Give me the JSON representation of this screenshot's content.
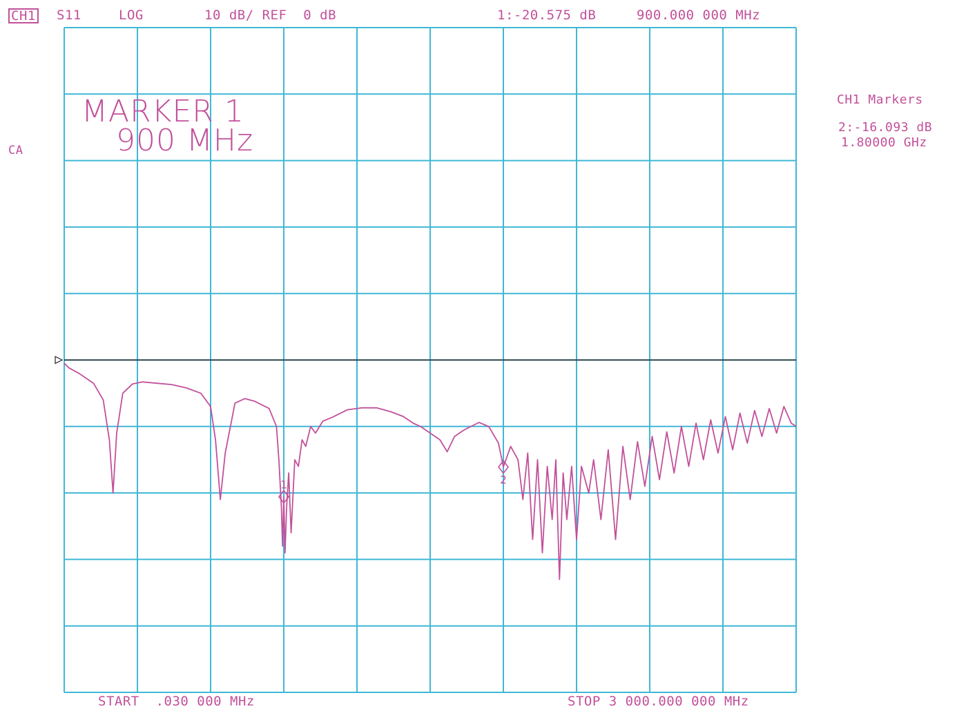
{
  "header": {
    "channel": "CH1",
    "parameter": "S11",
    "format": "LOG",
    "scale": "10 dB/ REF  0 dB",
    "marker_readout": "1:-20.575 dB",
    "marker_frequency": "900.000 000 MHz"
  },
  "side": {
    "cal_indicator": "CA",
    "markers_title": "CH1 Markers",
    "marker2_value": "2:-16.093 dB",
    "marker2_freq": "1.80000 GHz"
  },
  "annotation": {
    "line1": "MARKER 1",
    "line2": "900 MHz"
  },
  "footer": {
    "start": "START  .030 000 MHz",
    "stop": "STOP 3 000.000 000 MHz"
  },
  "colors": {
    "grid": "#3fb7d6",
    "trace": "#c2509a",
    "reference": "#222222"
  },
  "chart_data": {
    "type": "line",
    "x_unit": "MHz",
    "y_unit": "dB",
    "xlim": [
      0.03,
      3000
    ],
    "ylim": [
      -50,
      50
    ],
    "x_divisions": 10,
    "y_divisions": 10,
    "reference_level": 0,
    "grid": true,
    "markers": [
      {
        "label": "1",
        "x": 900,
        "y": -20.575
      },
      {
        "label": "2",
        "x": 1800,
        "y": -16.093
      }
    ],
    "series": [
      {
        "values": [
          [
            0.03,
            -0.5
          ],
          [
            20,
            -1.2
          ],
          [
            60,
            -2.0
          ],
          [
            120,
            -3.5
          ],
          [
            160,
            -6
          ],
          [
            185,
            -12
          ],
          [
            200,
            -20
          ],
          [
            215,
            -11
          ],
          [
            240,
            -5
          ],
          [
            280,
            -3.6
          ],
          [
            320,
            -3.3
          ],
          [
            380,
            -3.5
          ],
          [
            440,
            -3.7
          ],
          [
            500,
            -4.2
          ],
          [
            560,
            -5
          ],
          [
            600,
            -7
          ],
          [
            620,
            -12
          ],
          [
            640,
            -21
          ],
          [
            660,
            -14
          ],
          [
            700,
            -6.5
          ],
          [
            740,
            -5.8
          ],
          [
            780,
            -6.2
          ],
          [
            840,
            -7.3
          ],
          [
            870,
            -10
          ],
          [
            880,
            -15
          ],
          [
            890,
            -22
          ],
          [
            895,
            -28
          ],
          [
            900,
            -20.6
          ],
          [
            905,
            -29
          ],
          [
            912,
            -22
          ],
          [
            920,
            -17
          ],
          [
            930,
            -26
          ],
          [
            945,
            -15
          ],
          [
            960,
            -16
          ],
          [
            975,
            -12
          ],
          [
            990,
            -13
          ],
          [
            1010,
            -10
          ],
          [
            1030,
            -11
          ],
          [
            1060,
            -9.2
          ],
          [
            1100,
            -8.6
          ],
          [
            1160,
            -7.5
          ],
          [
            1220,
            -7.2
          ],
          [
            1280,
            -7.2
          ],
          [
            1340,
            -7.8
          ],
          [
            1390,
            -8.5
          ],
          [
            1430,
            -9.5
          ],
          [
            1460,
            -10
          ],
          [
            1500,
            -11
          ],
          [
            1540,
            -12
          ],
          [
            1570,
            -13.8
          ],
          [
            1600,
            -11.5
          ],
          [
            1640,
            -10.5
          ],
          [
            1700,
            -9.4
          ],
          [
            1740,
            -10
          ],
          [
            1780,
            -12.5
          ],
          [
            1800,
            -16.1
          ],
          [
            1830,
            -13
          ],
          [
            1860,
            -15
          ],
          [
            1880,
            -21
          ],
          [
            1900,
            -14
          ],
          [
            1920,
            -27
          ],
          [
            1940,
            -15
          ],
          [
            1960,
            -29
          ],
          [
            1980,
            -16
          ],
          [
            2000,
            -24
          ],
          [
            2015,
            -15
          ],
          [
            2030,
            -33
          ],
          [
            2045,
            -17
          ],
          [
            2060,
            -24
          ],
          [
            2080,
            -16
          ],
          [
            2100,
            -27
          ],
          [
            2120,
            -16
          ],
          [
            2150,
            -20
          ],
          [
            2170,
            -15
          ],
          [
            2200,
            -24
          ],
          [
            2230,
            -13.5
          ],
          [
            2260,
            -27
          ],
          [
            2290,
            -13
          ],
          [
            2320,
            -21
          ],
          [
            2350,
            -12.3
          ],
          [
            2380,
            -19
          ],
          [
            2410,
            -11.5
          ],
          [
            2440,
            -18
          ],
          [
            2470,
            -10.8
          ],
          [
            2500,
            -17
          ],
          [
            2530,
            -10
          ],
          [
            2560,
            -16
          ],
          [
            2590,
            -9.5
          ],
          [
            2620,
            -15
          ],
          [
            2650,
            -9
          ],
          [
            2680,
            -14
          ],
          [
            2710,
            -8.5
          ],
          [
            2740,
            -13.5
          ],
          [
            2770,
            -8
          ],
          [
            2800,
            -12.5
          ],
          [
            2830,
            -7.6
          ],
          [
            2860,
            -11.5
          ],
          [
            2890,
            -7.3
          ],
          [
            2920,
            -11
          ],
          [
            2950,
            -7
          ],
          [
            2980,
            -9.5
          ],
          [
            3000,
            -10
          ]
        ]
      }
    ]
  }
}
